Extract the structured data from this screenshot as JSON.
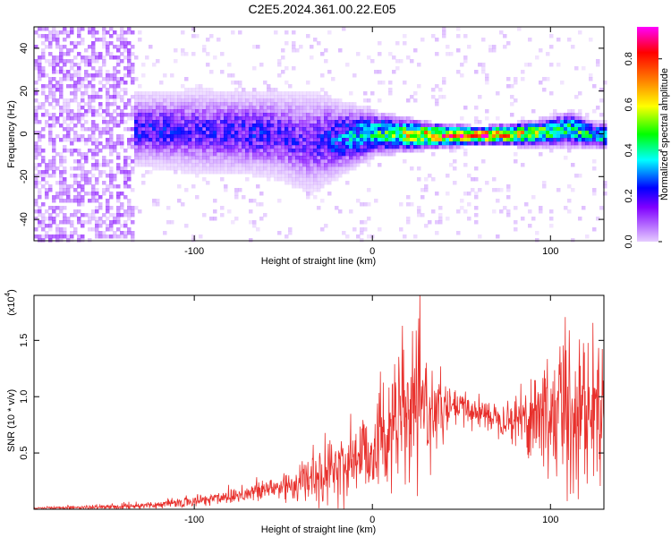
{
  "title": "C2E5.2024.361.00.22.E05",
  "chart_data": [
    {
      "type": "heatmap",
      "xlabel": "Height of straight line (km)",
      "ylabel": "Frequency (Hz)",
      "xlim": [
        -190,
        130
      ],
      "ylim": [
        -50,
        50
      ],
      "xticks": [
        -100,
        0,
        100
      ],
      "yticks": [
        -40,
        -20,
        0,
        20,
        40
      ],
      "colorbar": {
        "label": "Normalized spectral amplitude",
        "range": [
          0.0,
          0.94
        ],
        "ticks": [
          0.0,
          0.2,
          0.4,
          0.6,
          0.8
        ],
        "colors": [
          "#e6ccff",
          "#8000ff",
          "#0000ff",
          "#00ffff",
          "#00ff00",
          "#ffff00",
          "#ff8000",
          "#ff0000",
          "#ff00ff"
        ]
      },
      "ridge": {
        "description_points_x": [
          -130,
          -100,
          -60,
          -35,
          0,
          30,
          60,
          90,
          110,
          125
        ],
        "center_freq_hz": [
          3,
          2,
          1,
          -3,
          1,
          0,
          0,
          1,
          3,
          0
        ],
        "spread_hz": [
          8,
          9,
          9,
          11,
          5,
          3,
          2,
          3,
          4,
          3
        ],
        "peak_amplitude": [
          0.25,
          0.22,
          0.25,
          0.2,
          0.45,
          0.75,
          0.92,
          0.6,
          0.5,
          0.45
        ]
      },
      "noise_region_x": [
        -190,
        -135
      ]
    },
    {
      "type": "line",
      "xlabel": "Height of straight line (km)",
      "ylabel": "SNR (10 * v/v)",
      "exponent_label": "(x10",
      "exponent": "4",
      "exponent_suffix": ")",
      "xlim": [
        -190,
        130
      ],
      "ylim": [
        0,
        1.9
      ],
      "xticks": [
        -100,
        0,
        100
      ],
      "yticks": [
        0.5,
        1.0,
        1.5
      ],
      "ytick_labels": [
        "0.5",
        "1.0",
        "1.5"
      ],
      "color": "#e8302c",
      "envelope": {
        "x": [
          -190,
          -150,
          -120,
          -100,
          -80,
          -60,
          -40,
          -20,
          0,
          10,
          20,
          30,
          40,
          50,
          60,
          70,
          80,
          90,
          100,
          110,
          120,
          130
        ],
        "mean": [
          0.01,
          0.02,
          0.04,
          0.07,
          0.12,
          0.17,
          0.24,
          0.36,
          0.55,
          0.72,
          0.85,
          0.9,
          0.88,
          0.9,
          0.86,
          0.82,
          0.8,
          0.84,
          0.85,
          0.9,
          0.88,
          0.9
        ],
        "amplitude": [
          0.01,
          0.02,
          0.03,
          0.05,
          0.07,
          0.1,
          0.18,
          0.28,
          0.4,
          0.5,
          0.6,
          0.45,
          0.2,
          0.15,
          0.12,
          0.12,
          0.2,
          0.4,
          0.6,
          0.75,
          0.6,
          0.5
        ]
      }
    }
  ]
}
